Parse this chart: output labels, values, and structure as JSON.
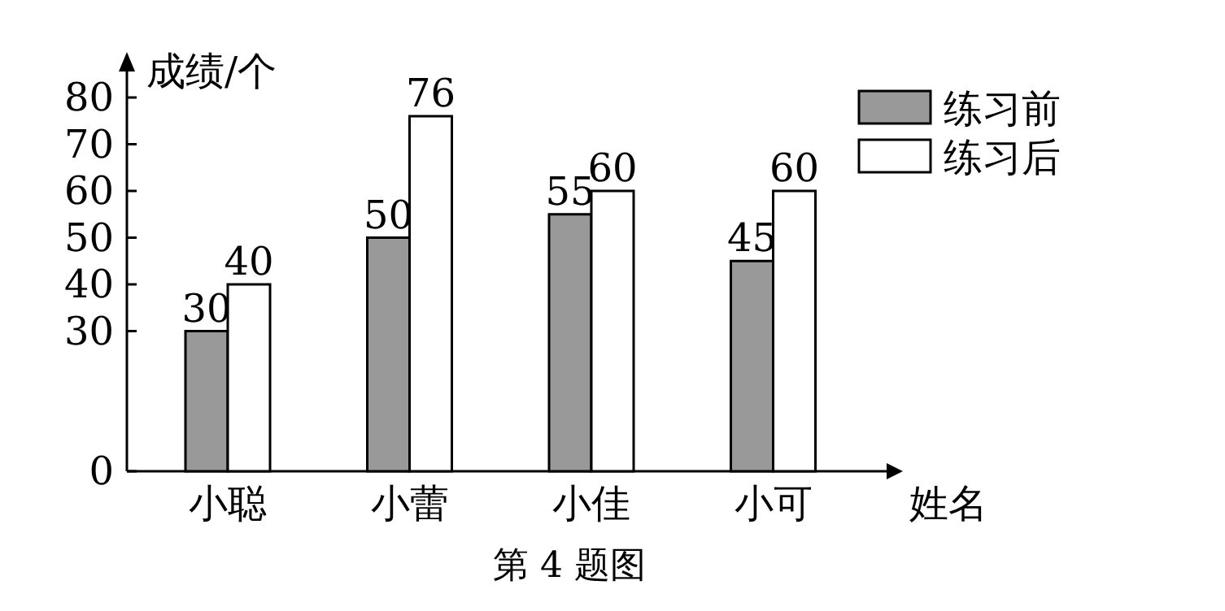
{
  "chart_data": {
    "type": "bar",
    "xlabel": "姓名",
    "ylabel": "成绩/个",
    "annotations": [
      "第 4 题图"
    ],
    "categories": [
      "小聪",
      "小蕾",
      "小佳",
      "小可"
    ],
    "series": [
      {
        "name": "练习前",
        "color": "#999999",
        "values": [
          30,
          50,
          55,
          45
        ]
      },
      {
        "name": "练习后",
        "color": "#ffffff",
        "values": [
          40,
          76,
          60,
          60
        ]
      }
    ],
    "ylim": [
      0,
      80
    ],
    "yticks": [
      0,
      30,
      40,
      50,
      60,
      70,
      80
    ],
    "data_labels": true,
    "legend": "top right"
  }
}
